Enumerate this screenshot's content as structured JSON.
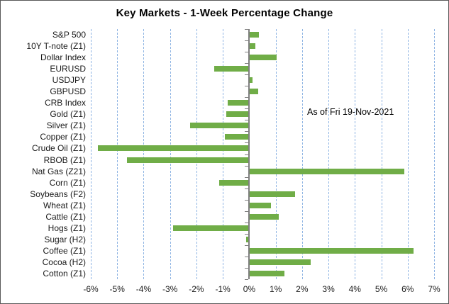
{
  "chart_data": {
    "type": "bar",
    "orientation": "horizontal",
    "title": "Key Markets - 1-Week Percentage Change",
    "annotation": "As of Fri 19-Nov-2021",
    "categories": [
      "S&P 500",
      "10Y T-note (Z1)",
      "Dollar Index",
      "EURUSD",
      "USDJPY",
      "GBPUSD",
      "CRB Index",
      "Gold (Z1)",
      "Silver (Z1)",
      "Copper (Z1)",
      "Crude Oil (Z1)",
      "RBOB (Z1)",
      "Nat Gas (Z21)",
      "Corn (Z1)",
      "Soybeans (F2)",
      "Wheat (Z1)",
      "Cattle (Z1)",
      "Hogs (Z1)",
      "Sugar (H2)",
      "Coffee (Z1)",
      "Cocoa (H2)",
      "Cotton (Z1)"
    ],
    "values": [
      0.35,
      0.2,
      1.0,
      -1.3,
      0.1,
      0.3,
      -0.8,
      -0.85,
      -2.2,
      -0.9,
      -5.7,
      -4.6,
      5.85,
      -1.1,
      1.7,
      0.8,
      1.1,
      -2.85,
      -0.1,
      6.2,
      2.3,
      1.3
    ],
    "x_ticks": [
      "-6%",
      "-5%",
      "-4%",
      "-3%",
      "-2%",
      "-1%",
      "0%",
      "1%",
      "2%",
      "3%",
      "4%",
      "5%",
      "6%",
      "7%"
    ],
    "xlim": [
      -6,
      7
    ],
    "grid": "vertical-dashed",
    "legend": "none",
    "bar_color": "#70AD47",
    "gridline_color": "#8EB4E3",
    "axis_color": "#7F7F7F"
  }
}
